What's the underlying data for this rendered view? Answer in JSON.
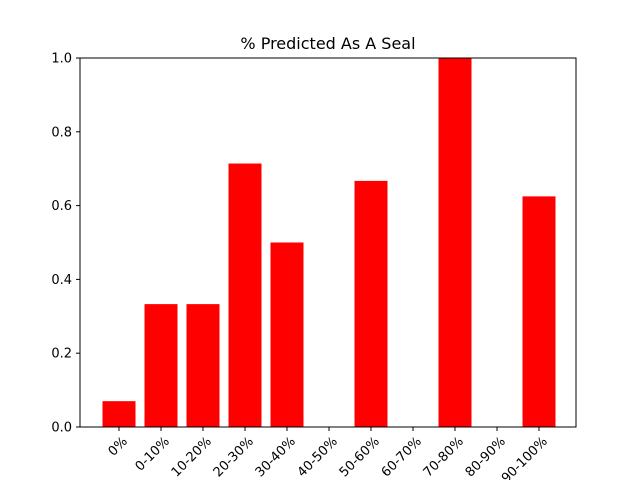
{
  "chart_data": {
    "type": "bar",
    "title": "% Predicted As A Seal",
    "xlabel": "",
    "ylabel": "",
    "categories": [
      "0%",
      "0-10%",
      "10-20%",
      "20-30%",
      "30-40%",
      "40-50%",
      "50-60%",
      "60-70%",
      "70-80%",
      "80-90%",
      "90-100%"
    ],
    "values": [
      0.07,
      0.333,
      0.333,
      0.714,
      0.5,
      0,
      0.667,
      0,
      1.0,
      0,
      0.625
    ],
    "ylim": [
      0,
      1.0
    ],
    "yticks": [
      "0.0",
      "0.2",
      "0.4",
      "0.6",
      "0.8",
      "1.0"
    ],
    "bar_color": "#ff0000",
    "grid": false,
    "legend": "none"
  }
}
